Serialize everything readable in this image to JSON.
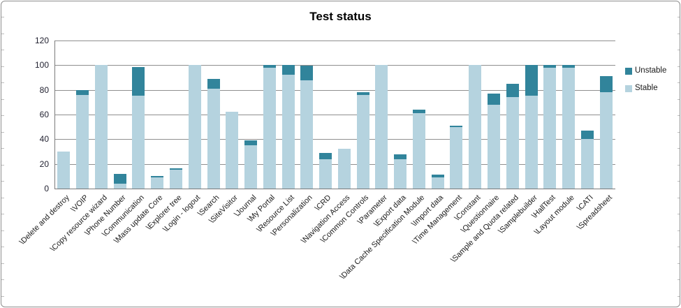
{
  "chart": {
    "title": "Test status"
  },
  "chart_data": {
    "type": "bar",
    "stacked": true,
    "title": "Test status",
    "xlabel": "",
    "ylabel": "",
    "ylim": [
      0,
      120
    ],
    "ytick_step": 20,
    "grid": true,
    "legend_position": "right",
    "categories": [
      "\\Delete and destroy",
      "\\VOIP",
      "\\Copy resource wizard",
      "\\Phone Number",
      "\\Communication",
      "\\Mass update Core",
      "\\Explorer tree",
      "\\Login - logout",
      "\\Search",
      "\\SiteVisitor",
      "\\Journal",
      "\\My Portal",
      "\\Resource List",
      "\\Personalization",
      "\\CRD",
      "\\Navigation Access",
      "\\Common Controls",
      "\\Parameter",
      "\\Export data",
      "\\Data Cache Specification Module",
      "\\Import data",
      "\\Time Management",
      "\\Constant",
      "\\Questionnaire",
      "\\Sample and Quota related",
      "\\Samplebuilder",
      "\\HallTest",
      "\\Layout module",
      "\\CATI",
      "\\Spreadsheet"
    ],
    "series": [
      {
        "name": "Stable",
        "color": "#B5D3DF",
        "values": [
          30,
          76,
          100,
          4,
          75,
          9,
          15,
          100,
          81,
          62,
          35,
          98,
          92,
          88,
          24,
          32,
          76,
          100,
          24,
          61,
          9,
          50,
          100,
          68,
          74,
          75,
          98,
          98,
          40,
          78
        ]
      },
      {
        "name": "Unstable",
        "color": "#31849B",
        "values": [
          0,
          4,
          0,
          8,
          23,
          1,
          1,
          0,
          8,
          0,
          4,
          2,
          8,
          12,
          5,
          0,
          2,
          0,
          4,
          3,
          2,
          1,
          0,
          9,
          11,
          25,
          2,
          2,
          7,
          13
        ]
      }
    ]
  },
  "colors": {
    "stable": "#B5D3DF",
    "unstable": "#31849B",
    "gridline": "#8f8f8f",
    "axis": "#7a7a7a",
    "text": "#1a1a1a"
  },
  "y_axis_ticks": [
    "0",
    "20",
    "40",
    "60",
    "80",
    "100",
    "120"
  ]
}
